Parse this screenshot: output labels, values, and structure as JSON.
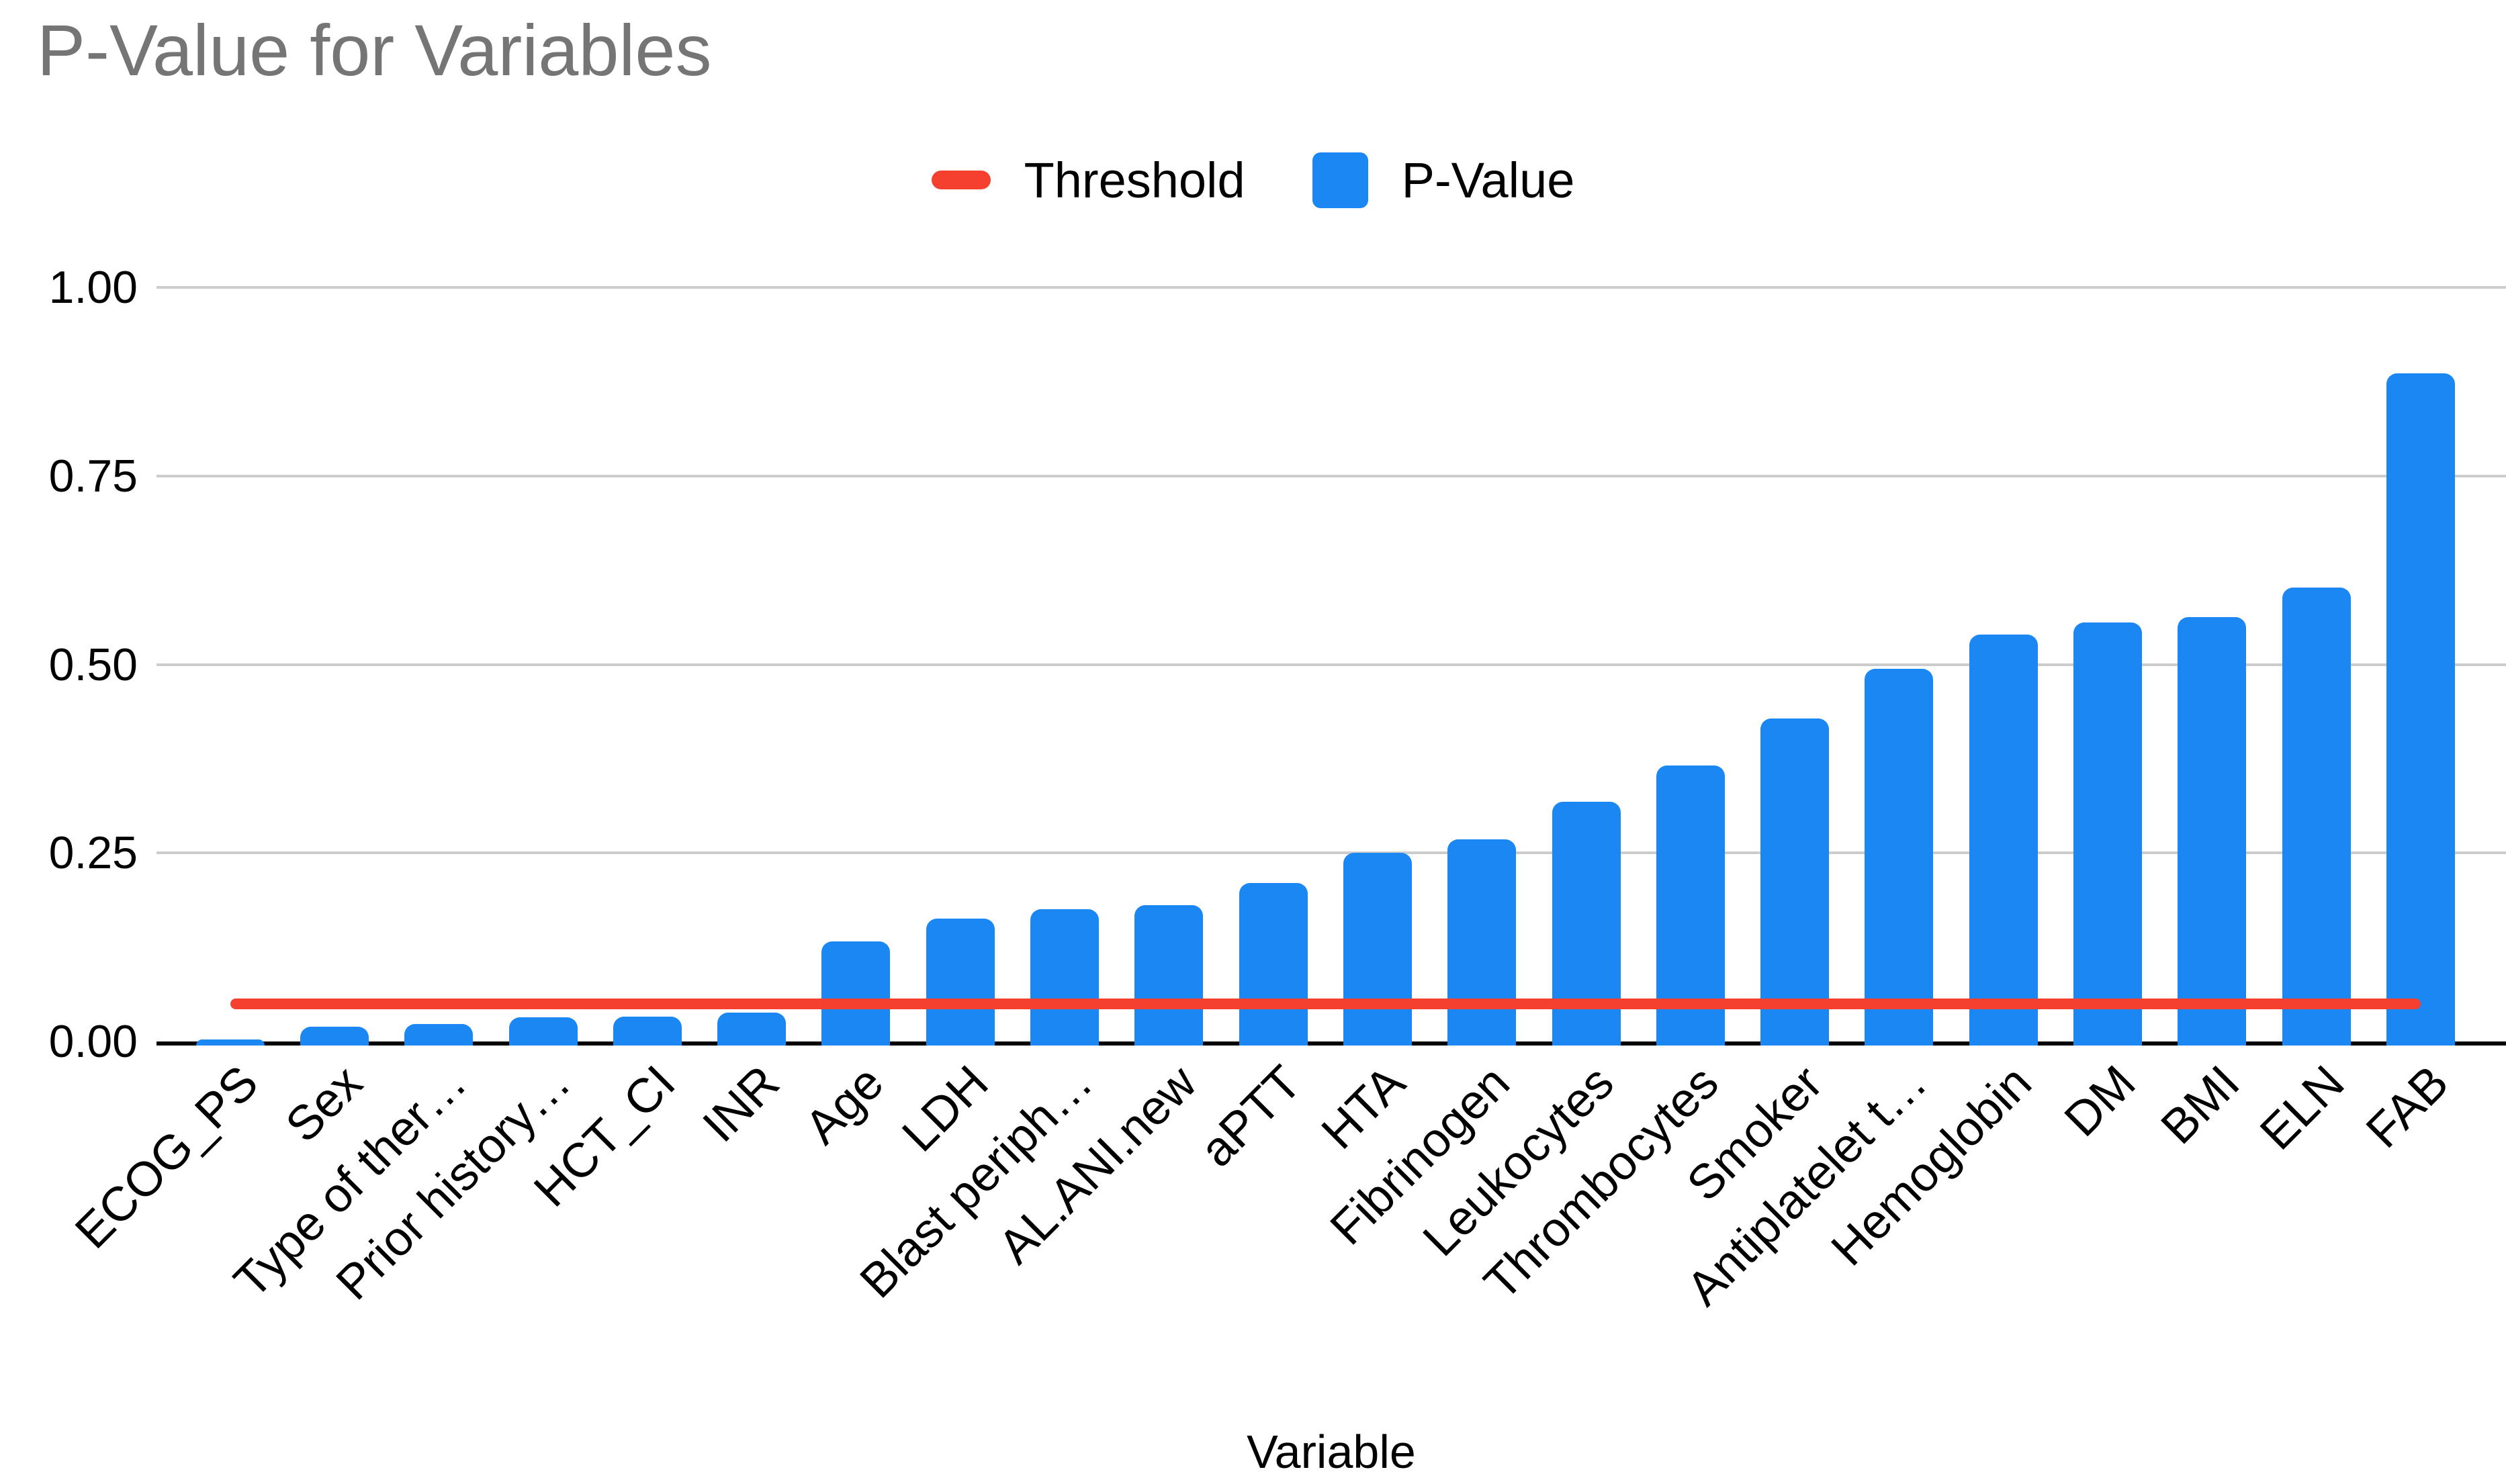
{
  "title": "P-Value for Variables",
  "legend": {
    "threshold_label": "Threshold",
    "pvalue_label": "P-Value"
  },
  "x_axis_title": "Variable",
  "y_tick_labels": [
    "0.00",
    "0.25",
    "0.50",
    "0.75",
    "1.00"
  ],
  "colors": {
    "bar": "#1b87f2",
    "threshold": "#f5402f",
    "title_text": "#757575",
    "grid": "#cccccc",
    "axis": "#000000",
    "text": "#000000",
    "background": "#ffffff"
  },
  "chart_data": {
    "type": "bar",
    "title": "P-Value for Variables",
    "xlabel": "Variable",
    "ylabel": "",
    "ylim": [
      0,
      1.0
    ],
    "y_ticks": [
      0,
      0.25,
      0.5,
      0.75,
      1.0
    ],
    "grid": true,
    "legend_position": "top-center",
    "legend_entries": [
      "Threshold",
      "P-Value"
    ],
    "categories": [
      "ECOG_PS",
      "Sex",
      "Type of ther…",
      "Prior history…",
      "HCT_CI",
      "INR",
      "Age",
      "LDH",
      "Blast periph…",
      "AL.ANI.new",
      "aPTT",
      "HTA",
      "Fibrinogen",
      "Leukocytes",
      "Thrombocytes",
      "Smoker",
      "Antiplatelet t…",
      "Hemoglobin",
      "DM",
      "BMI",
      "ELN",
      "FAB"
    ],
    "series": [
      {
        "name": "P-Value",
        "type": "bar",
        "values": [
          0.003,
          0.02,
          0.023,
          0.032,
          0.033,
          0.038,
          0.133,
          0.163,
          0.175,
          0.181,
          0.21,
          0.25,
          0.268,
          0.318,
          0.366,
          0.428,
          0.494,
          0.54,
          0.556,
          0.563,
          0.602,
          0.886
        ]
      },
      {
        "name": "Threshold",
        "type": "line",
        "constant_value": 0.05
      }
    ]
  }
}
